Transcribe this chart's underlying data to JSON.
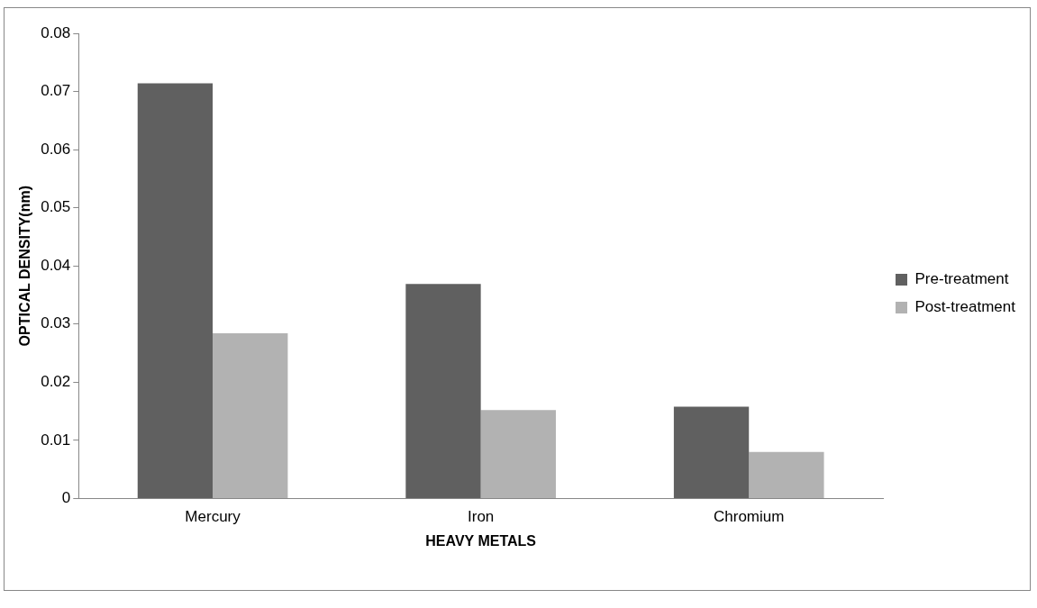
{
  "chart_data": {
    "type": "bar",
    "xlabel": "HEAVY METALS",
    "ylabel": "OPTICAL DENSITY(nm)",
    "categories": [
      "Mercury",
      "Iron",
      "Chromium"
    ],
    "series": [
      {
        "name": "Pre-treatment",
        "color": "#606060",
        "values": [
          0.0714,
          0.0369,
          0.0158
        ]
      },
      {
        "name": "Post-treatment",
        "color": "#b2b2b2",
        "values": [
          0.0284,
          0.0152,
          0.008
        ]
      }
    ],
    "ylim": [
      0,
      0.08
    ],
    "yticks": [
      0,
      0.01,
      0.02,
      0.03,
      0.04,
      0.05,
      0.06,
      0.07,
      0.08
    ],
    "grid": false,
    "legend": "right"
  }
}
